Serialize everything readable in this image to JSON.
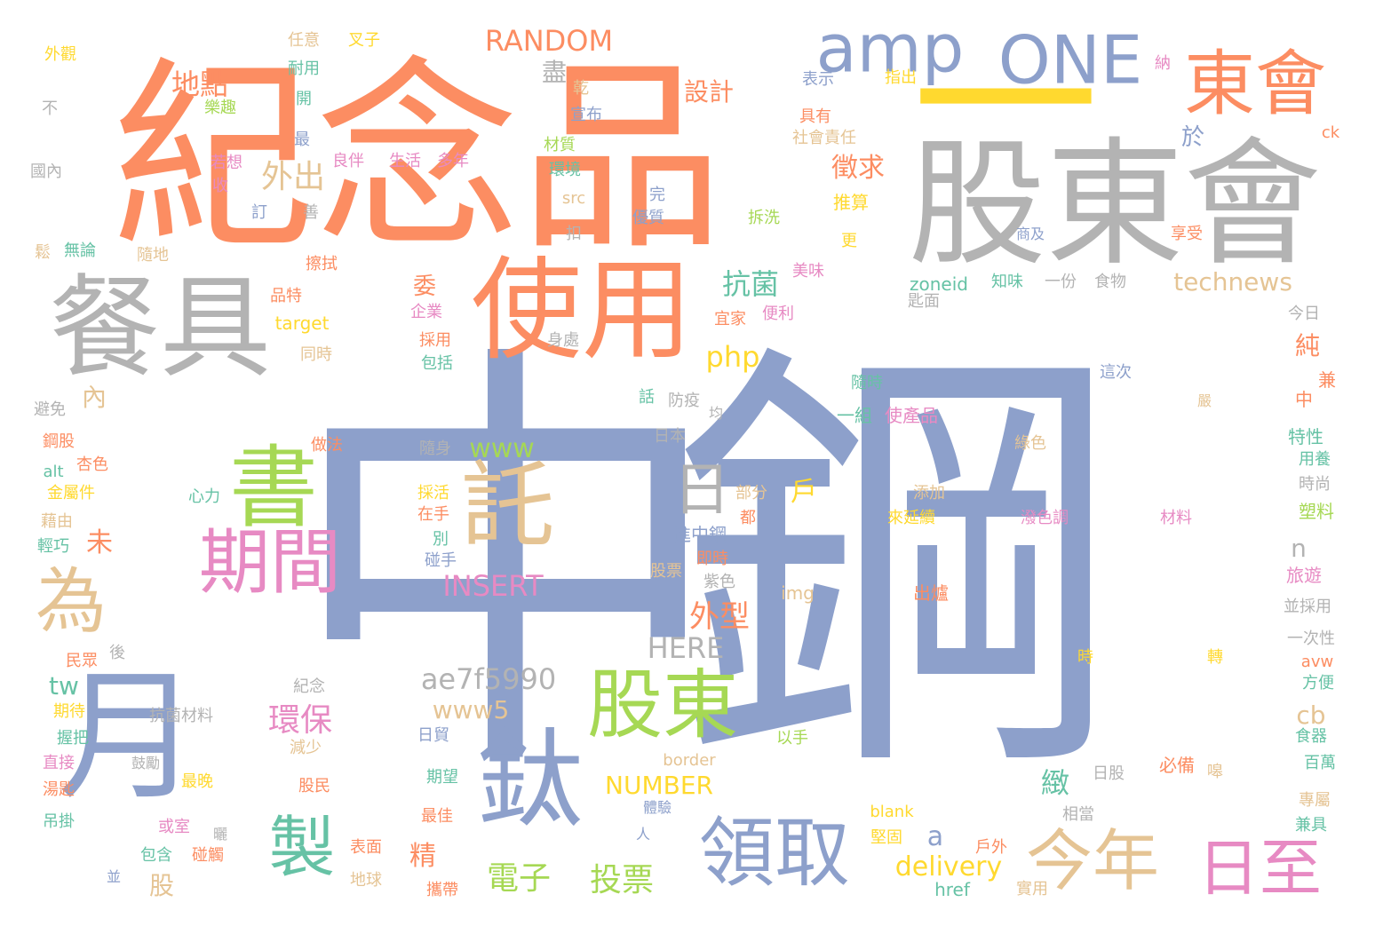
{
  "palette": {
    "blue": "#8da0cb",
    "orange": "#fc8d62",
    "gray": "#b3b3b3",
    "green": "#a6d854",
    "pink": "#e78ac3",
    "tan": "#e5c494",
    "teal": "#66c2a5",
    "yellow": "#ffd92f"
  },
  "words": [
    {
      "t": "中鋼",
      "c": "blue"
    },
    {
      "t": "紀念品",
      "c": "orange"
    },
    {
      "t": "股東會",
      "c": "gray"
    },
    {
      "t": "餐具",
      "c": "gray"
    },
    {
      "t": "使用",
      "c": "orange"
    },
    {
      "t": "一",
      "c": "yellow"
    },
    {
      "t": "東會",
      "c": "orange"
    },
    {
      "t": "amp",
      "c": "blue"
    },
    {
      "t": "ONE",
      "c": "blue"
    },
    {
      "t": "月",
      "c": "blue"
    },
    {
      "t": "鈦",
      "c": "blue"
    },
    {
      "t": "書",
      "c": "green"
    },
    {
      "t": "託",
      "c": "tan"
    },
    {
      "t": "期間",
      "c": "pink"
    },
    {
      "t": "股東",
      "c": "green"
    },
    {
      "t": "領取",
      "c": "blue"
    },
    {
      "t": "今年",
      "c": "tan"
    },
    {
      "t": "日至",
      "c": "pink"
    },
    {
      "t": "為",
      "c": "tan"
    },
    {
      "t": "製",
      "c": "teal"
    },
    {
      "t": "日",
      "c": "gray"
    },
    {
      "t": "設計",
      "c": "orange"
    },
    {
      "t": "RANDOM",
      "c": "orange"
    },
    {
      "t": "地點",
      "c": "orange"
    },
    {
      "t": "外出",
      "c": "tan"
    },
    {
      "t": "徵求",
      "c": "orange"
    },
    {
      "t": "抗菌",
      "c": "teal"
    },
    {
      "t": "technews",
      "c": "tan"
    },
    {
      "t": "php",
      "c": "yellow"
    },
    {
      "t": "www",
      "c": "green"
    },
    {
      "t": "INSERT",
      "c": "pink"
    },
    {
      "t": "外型",
      "c": "orange"
    },
    {
      "t": "HERE",
      "c": "gray"
    },
    {
      "t": "ae7f5990",
      "c": "gray"
    },
    {
      "t": "www5",
      "c": "tan"
    },
    {
      "t": "NUMBER",
      "c": "yellow"
    },
    {
      "t": "環保",
      "c": "pink"
    },
    {
      "t": "電子",
      "c": "green"
    },
    {
      "t": "投票",
      "c": "green"
    },
    {
      "t": "delivery",
      "c": "yellow"
    },
    {
      "t": "tw",
      "c": "teal"
    },
    {
      "t": "未",
      "c": "orange"
    },
    {
      "t": "精",
      "c": "orange"
    },
    {
      "t": "股",
      "c": "tan"
    },
    {
      "t": "a",
      "c": "blue"
    },
    {
      "t": "緻",
      "c": "teal"
    },
    {
      "t": "cb",
      "c": "tan"
    },
    {
      "t": "n",
      "c": "gray"
    },
    {
      "t": "純",
      "c": "orange"
    },
    {
      "t": "於",
      "c": "blue"
    },
    {
      "t": "盡",
      "c": "gray"
    },
    {
      "t": "戶",
      "c": "yellow"
    },
    {
      "t": "委",
      "c": "orange"
    },
    {
      "t": "內",
      "c": "tan"
    },
    {
      "t": "外觀",
      "c": "yellow"
    },
    {
      "t": "任意",
      "c": "tan"
    },
    {
      "t": "叉子",
      "c": "yellow"
    },
    {
      "t": "耐用",
      "c": "teal"
    },
    {
      "t": "開",
      "c": "teal"
    },
    {
      "t": "不",
      "c": "gray"
    },
    {
      "t": "樂趣",
      "c": "green"
    },
    {
      "t": "最",
      "c": "blue"
    },
    {
      "t": "國內",
      "c": "gray"
    },
    {
      "t": "若想",
      "c": "pink"
    },
    {
      "t": "收",
      "c": "pink"
    },
    {
      "t": "良伴",
      "c": "pink"
    },
    {
      "t": "生活",
      "c": "pink"
    },
    {
      "t": "多年",
      "c": "pink"
    },
    {
      "t": "訂",
      "c": "blue"
    },
    {
      "t": "善",
      "c": "gray"
    },
    {
      "t": "無論",
      "c": "teal"
    },
    {
      "t": "鬆",
      "c": "tan"
    },
    {
      "t": "隨地",
      "c": "tan"
    },
    {
      "t": "擦拭",
      "c": "orange"
    },
    {
      "t": "品特",
      "c": "orange"
    },
    {
      "t": "企業",
      "c": "pink"
    },
    {
      "t": "target",
      "c": "yellow"
    },
    {
      "t": "同時",
      "c": "tan"
    },
    {
      "t": "採用",
      "c": "orange"
    },
    {
      "t": "包括",
      "c": "teal"
    },
    {
      "t": "身處",
      "c": "gray"
    },
    {
      "t": "乾",
      "c": "tan"
    },
    {
      "t": "宣布",
      "c": "blue"
    },
    {
      "t": "材質",
      "c": "green"
    },
    {
      "t": "環境",
      "c": "teal"
    },
    {
      "t": "src",
      "c": "tan"
    },
    {
      "t": "完",
      "c": "blue"
    },
    {
      "t": "優質",
      "c": "blue"
    },
    {
      "t": "扣",
      "c": "gray"
    },
    {
      "t": "表示",
      "c": "blue"
    },
    {
      "t": "指出",
      "c": "yellow"
    },
    {
      "t": "納",
      "c": "pink"
    },
    {
      "t": "具有",
      "c": "orange"
    },
    {
      "t": "社會責任",
      "c": "tan"
    },
    {
      "t": "ck",
      "c": "orange"
    },
    {
      "t": "推算",
      "c": "yellow"
    },
    {
      "t": "拆洗",
      "c": "green"
    },
    {
      "t": "更",
      "c": "yellow"
    },
    {
      "t": "商及",
      "c": "blue"
    },
    {
      "t": "享受",
      "c": "orange"
    },
    {
      "t": "美味",
      "c": "pink"
    },
    {
      "t": "zoneid",
      "c": "teal"
    },
    {
      "t": "知味",
      "c": "teal"
    },
    {
      "t": "一份",
      "c": "gray"
    },
    {
      "t": "食物",
      "c": "gray"
    },
    {
      "t": "匙面",
      "c": "gray"
    },
    {
      "t": "便利",
      "c": "pink"
    },
    {
      "t": "宜家",
      "c": "orange"
    },
    {
      "t": "今日",
      "c": "gray"
    },
    {
      "t": "兼",
      "c": "orange"
    },
    {
      "t": "這次",
      "c": "blue"
    },
    {
      "t": "隨時",
      "c": "teal"
    },
    {
      "t": "嚴",
      "c": "tan"
    },
    {
      "t": "中",
      "c": "orange"
    },
    {
      "t": "話",
      "c": "teal"
    },
    {
      "t": "防疫",
      "c": "gray"
    },
    {
      "t": "均",
      "c": "gray"
    },
    {
      "t": "一組",
      "c": "teal"
    },
    {
      "t": "使產品",
      "c": "pink"
    },
    {
      "t": "避免",
      "c": "gray"
    },
    {
      "t": "日本",
      "c": "gray"
    },
    {
      "t": "鋼股",
      "c": "orange"
    },
    {
      "t": "做法",
      "c": "orange"
    },
    {
      "t": "隨身",
      "c": "gray"
    },
    {
      "t": "綠色",
      "c": "tan"
    },
    {
      "t": "特性",
      "c": "teal"
    },
    {
      "t": "alt",
      "c": "teal"
    },
    {
      "t": "杏色",
      "c": "orange"
    },
    {
      "t": "用養",
      "c": "teal"
    },
    {
      "t": "金屬件",
      "c": "yellow"
    },
    {
      "t": "部分",
      "c": "tan"
    },
    {
      "t": "添加",
      "c": "tan"
    },
    {
      "t": "時尚",
      "c": "gray"
    },
    {
      "t": "藉由",
      "c": "tan"
    },
    {
      "t": "心力",
      "c": "teal"
    },
    {
      "t": "採活",
      "c": "yellow"
    },
    {
      "t": "都",
      "c": "orange"
    },
    {
      "t": "塑料",
      "c": "green"
    },
    {
      "t": "輕巧",
      "c": "teal"
    },
    {
      "t": "在手",
      "c": "orange"
    },
    {
      "t": "來延續",
      "c": "yellow"
    },
    {
      "t": "潑色調",
      "c": "pink"
    },
    {
      "t": "材料",
      "c": "pink"
    },
    {
      "t": "別",
      "c": "teal"
    },
    {
      "t": "進中鋼",
      "c": "blue"
    },
    {
      "t": "碰手",
      "c": "blue"
    },
    {
      "t": "即時",
      "c": "orange"
    },
    {
      "t": "旅遊",
      "c": "pink"
    },
    {
      "t": "股票",
      "c": "tan"
    },
    {
      "t": "紫色",
      "c": "gray"
    },
    {
      "t": "img",
      "c": "tan"
    },
    {
      "t": "出爐",
      "c": "orange"
    },
    {
      "t": "並採用",
      "c": "gray"
    },
    {
      "t": "民眾",
      "c": "orange"
    },
    {
      "t": "後",
      "c": "gray"
    },
    {
      "t": "一次性",
      "c": "gray"
    },
    {
      "t": "時",
      "c": "yellow"
    },
    {
      "t": "轉",
      "c": "yellow"
    },
    {
      "t": "avw",
      "c": "orange"
    },
    {
      "t": "紀念",
      "c": "gray"
    },
    {
      "t": "方便",
      "c": "teal"
    },
    {
      "t": "期待",
      "c": "yellow"
    },
    {
      "t": "抗菌材料",
      "c": "gray"
    },
    {
      "t": "握把",
      "c": "teal"
    },
    {
      "t": "減少",
      "c": "tan"
    },
    {
      "t": "日貿",
      "c": "blue"
    },
    {
      "t": "以手",
      "c": "green"
    },
    {
      "t": "食器",
      "c": "teal"
    },
    {
      "t": "直接",
      "c": "pink"
    },
    {
      "t": "鼓勵",
      "c": "gray"
    },
    {
      "t": "股民",
      "c": "orange"
    },
    {
      "t": "border",
      "c": "tan"
    },
    {
      "t": "必備",
      "c": "orange"
    },
    {
      "t": "嗥",
      "c": "tan"
    },
    {
      "t": "百萬",
      "c": "teal"
    },
    {
      "t": "湯匙",
      "c": "orange"
    },
    {
      "t": "最晚",
      "c": "yellow"
    },
    {
      "t": "期望",
      "c": "teal"
    },
    {
      "t": "日股",
      "c": "gray"
    },
    {
      "t": "專屬",
      "c": "tan"
    },
    {
      "t": "吊掛",
      "c": "teal"
    },
    {
      "t": "或室",
      "c": "pink"
    },
    {
      "t": "曬",
      "c": "gray"
    },
    {
      "t": "最佳",
      "c": "orange"
    },
    {
      "t": "體驗",
      "c": "blue"
    },
    {
      "t": "blank",
      "c": "yellow"
    },
    {
      "t": "相當",
      "c": "gray"
    },
    {
      "t": "兼具",
      "c": "teal"
    },
    {
      "t": "人",
      "c": "blue"
    },
    {
      "t": "包含",
      "c": "teal"
    },
    {
      "t": "碰觸",
      "c": "orange"
    },
    {
      "t": "表面",
      "c": "orange"
    },
    {
      "t": "堅固",
      "c": "yellow"
    },
    {
      "t": "戶外",
      "c": "orange"
    },
    {
      "t": "並",
      "c": "blue"
    },
    {
      "t": "地球",
      "c": "tan"
    },
    {
      "t": "攜帶",
      "c": "orange"
    },
    {
      "t": "href",
      "c": "teal"
    },
    {
      "t": "實用",
      "c": "tan"
    }
  ]
}
